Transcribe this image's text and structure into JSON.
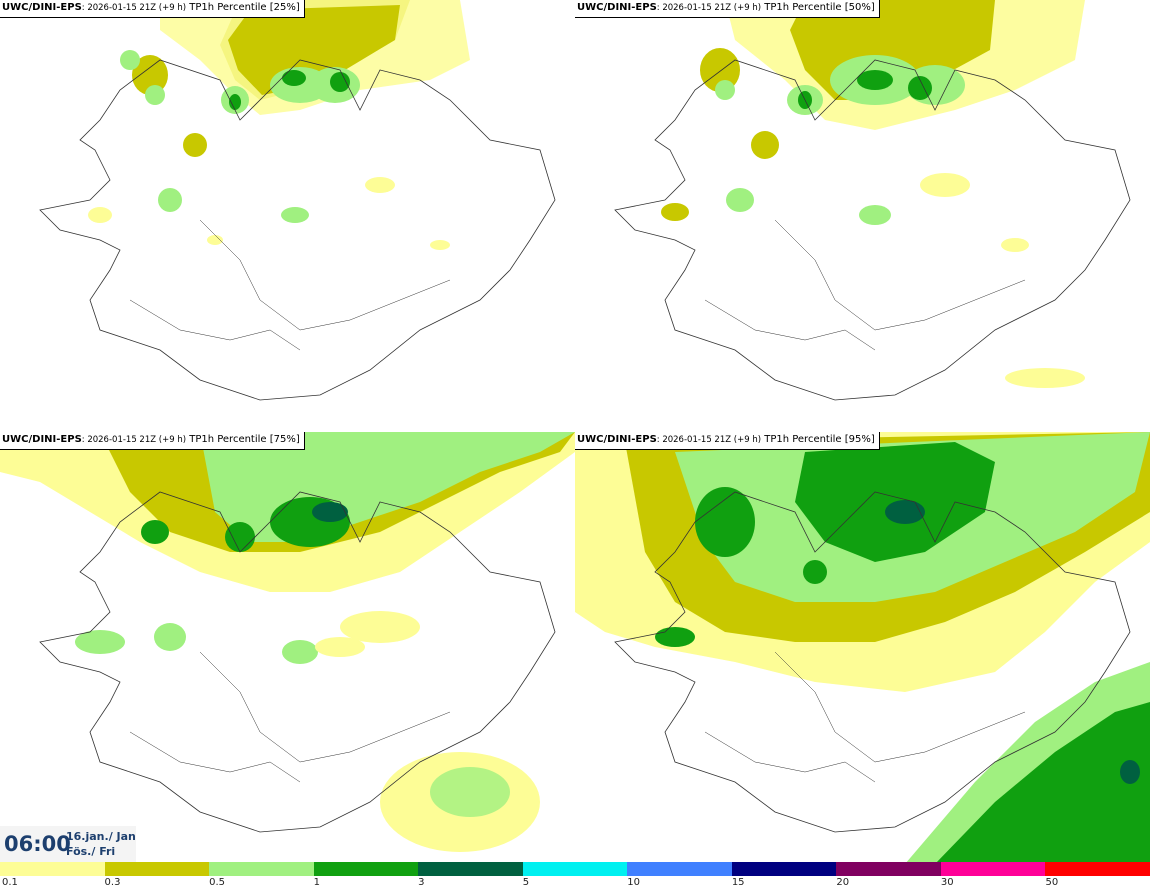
{
  "panels": [
    {
      "model": "UWC/DINI-EPS",
      "run": ": 2026-01-15 21Z (+9 h)",
      "param": " TP1h Percentile [25%]"
    },
    {
      "model": "UWC/DINI-EPS",
      "run": ": 2026-01-15 21Z (+9 h)",
      "param": " TP1h Percentile [50%]"
    },
    {
      "model": "UWC/DINI-EPS",
      "run": ": 2026-01-15 21Z (+9 h)",
      "param": " TP1h Percentile [75%]"
    },
    {
      "model": "UWC/DINI-EPS",
      "run": ": 2026-01-15 21Z (+9 h)",
      "param": " TP1h Percentile [95%]"
    }
  ],
  "valid_time": {
    "time": "06:00",
    "date_line1": "16.jan./ Jan",
    "date_line2": "Fös./ Fri"
  },
  "legend": {
    "colors": [
      "#fdfd96",
      "#c8c800",
      "#a0f080",
      "#10a010",
      "#006040",
      "#00f0f0",
      "#4080ff",
      "#000080",
      "#800060",
      "#ff0098",
      "#ff0000"
    ],
    "labels": [
      "0.1",
      "0.3",
      "0.5",
      "1",
      "3",
      "5",
      "10",
      "15",
      "20",
      "30",
      "50"
    ]
  }
}
